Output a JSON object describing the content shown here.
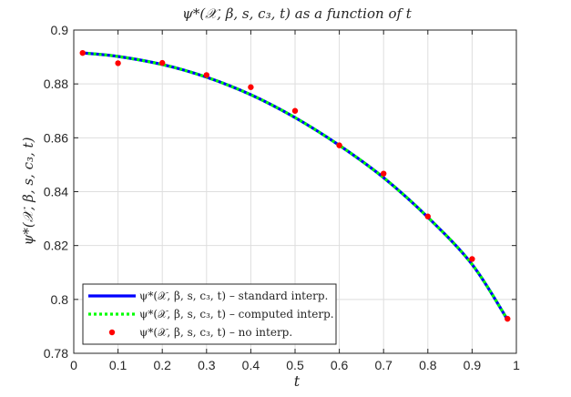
{
  "chart_data": {
    "type": "line",
    "title": "ψ*(𝒳, β, s, c₃, t) as a function of t",
    "xlabel": "t",
    "ylabel": "ψ*(𝒳, β, s, c₃, t)",
    "xlim": [
      0,
      1
    ],
    "ylim": [
      0.78,
      0.9
    ],
    "xticks": [
      0,
      0.1,
      0.2,
      0.3,
      0.4,
      0.5,
      0.6,
      0.7,
      0.8,
      0.9,
      1
    ],
    "xtick_labels": [
      "0",
      "0.1",
      "0.2",
      "0.3",
      "0.4",
      "0.5",
      "0.6",
      "0.7",
      "0.8",
      "0.9",
      "1"
    ],
    "yticks": [
      0.78,
      0.8,
      0.82,
      0.84,
      0.86,
      0.88,
      0.9
    ],
    "ytick_labels": [
      "0.78",
      "0.8",
      "0.82",
      "0.84",
      "0.86",
      "0.88",
      "0.9"
    ],
    "grid": true,
    "legend_position": "bottom-left",
    "series": [
      {
        "name": "ψ*(𝒳, β, s, c₃, t) – standard interp.",
        "style": "solid",
        "color": "#0000ff",
        "x": [
          0.02,
          0.1,
          0.2,
          0.3,
          0.4,
          0.5,
          0.6,
          0.7,
          0.8,
          0.9,
          0.98
        ],
        "y": [
          0.8915,
          0.8902,
          0.8872,
          0.8825,
          0.876,
          0.8675,
          0.8572,
          0.8452,
          0.8305,
          0.813,
          0.7925
        ]
      },
      {
        "name": "ψ*(𝒳, β, s, c₃, t) – computed interp.",
        "style": "dotted",
        "color": "#00ff00",
        "x": [
          0.02,
          0.1,
          0.2,
          0.3,
          0.4,
          0.5,
          0.6,
          0.7,
          0.8,
          0.9,
          0.98
        ],
        "y": [
          0.8915,
          0.8902,
          0.8872,
          0.8825,
          0.876,
          0.8675,
          0.8572,
          0.8452,
          0.8305,
          0.813,
          0.7925
        ]
      },
      {
        "name": "ψ*(𝒳, β, s, c₃, t) – no interp.",
        "style": "markers",
        "color": "#ff0000",
        "x": [
          0.02,
          0.1,
          0.2,
          0.3,
          0.4,
          0.5,
          0.6,
          0.7,
          0.8,
          0.9,
          0.98
        ],
        "y": [
          0.8915,
          0.8877,
          0.8878,
          0.8833,
          0.8788,
          0.87,
          0.8572,
          0.8467,
          0.8308,
          0.815,
          0.7928
        ]
      }
    ]
  }
}
